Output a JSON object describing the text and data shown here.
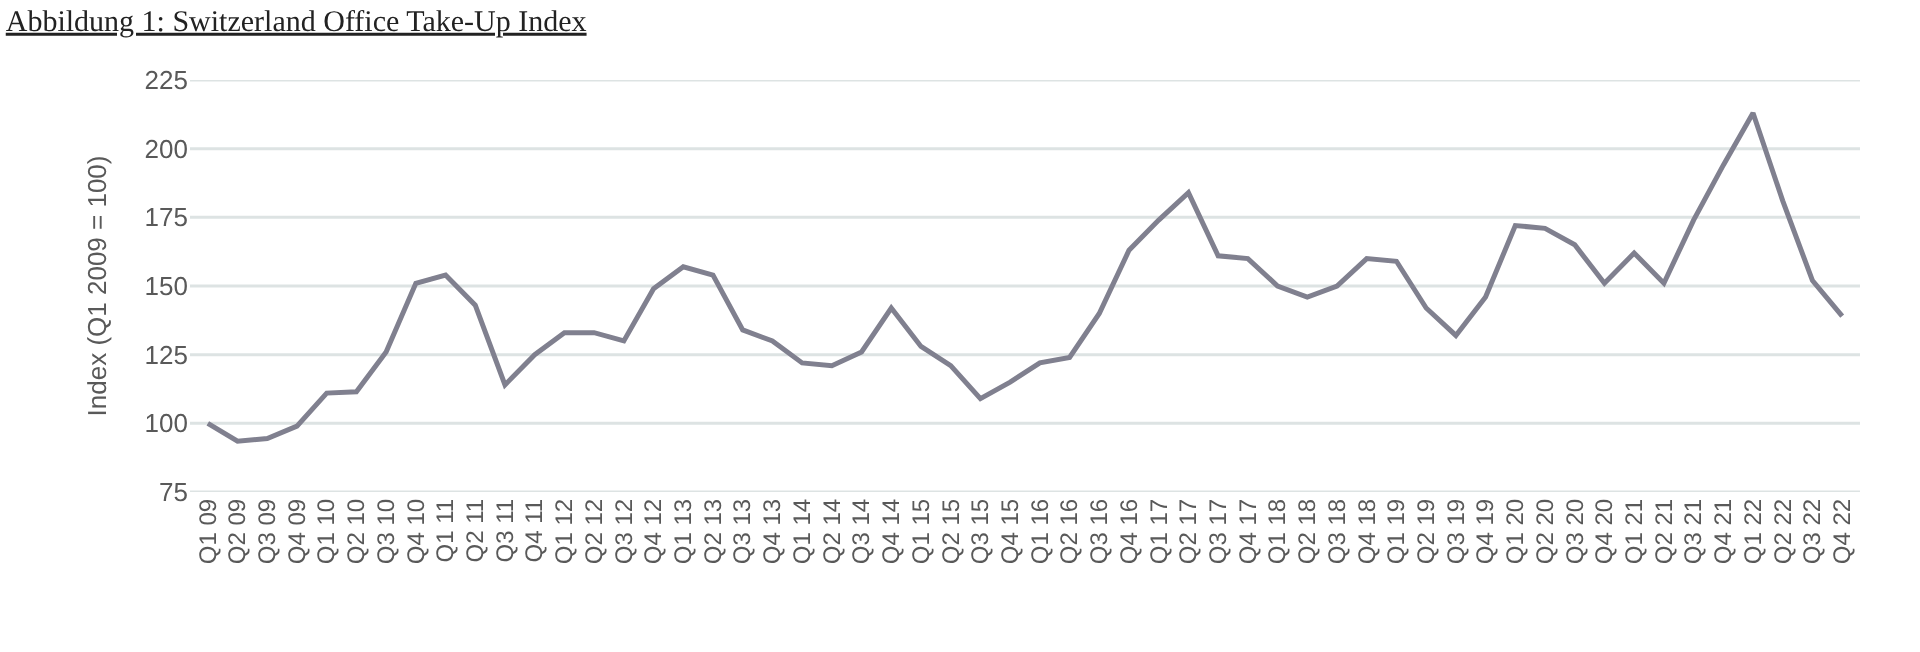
{
  "chart_data": {
    "type": "line",
    "title": "Abbildung 1: Switzerland Office Take-Up Index",
    "ylabel": "Index (Q1 2009 = 100)",
    "categories": [
      "Q1 09",
      "Q2 09",
      "Q3 09",
      "Q4 09",
      "Q1 10",
      "Q2 10",
      "Q3 10",
      "Q4 10",
      "Q1 11",
      "Q2 11",
      "Q3 11",
      "Q4 11",
      "Q1 12",
      "Q2 12",
      "Q3 12",
      "Q4 12",
      "Q1 13",
      "Q2 13",
      "Q3 13",
      "Q4 13",
      "Q1 14",
      "Q2 14",
      "Q3 14",
      "Q4 14",
      "Q1 15",
      "Q2 15",
      "Q3 15",
      "Q4 15",
      "Q1 16",
      "Q2 16",
      "Q3 16",
      "Q4 16",
      "Q1 17",
      "Q2 17",
      "Q3 17",
      "Q4 17",
      "Q1 18",
      "Q2 18",
      "Q3 18",
      "Q4 18",
      "Q1 19",
      "Q2 19",
      "Q3 19",
      "Q4 19",
      "Q1 20",
      "Q2 20",
      "Q3 20",
      "Q4 20",
      "Q1 21",
      "Q2 21",
      "Q3 21",
      "Q4 21",
      "Q1 22",
      "Q2 22",
      "Q3 22",
      "Q4 22"
    ],
    "series": [
      {
        "color": "#80808f",
        "values": [
          100,
          93.5,
          94.5,
          99,
          111,
          111.5,
          126,
          151,
          154,
          143,
          114,
          125,
          133,
          133,
          130,
          149,
          157,
          154,
          134,
          130,
          122,
          121,
          126,
          142,
          128,
          121,
          109,
          115,
          122,
          124,
          140,
          163,
          174,
          184,
          161,
          160,
          150,
          146,
          150,
          160,
          159,
          142,
          132,
          146,
          172,
          171,
          165,
          151,
          162,
          151,
          174,
          194,
          213,
          181,
          152,
          139
        ]
      }
    ],
    "ylim": [
      75,
      225
    ],
    "yticks": [
      75,
      100,
      125,
      150,
      175,
      200,
      225
    ],
    "grid": "y",
    "marker": "none",
    "line_style": "solid"
  }
}
